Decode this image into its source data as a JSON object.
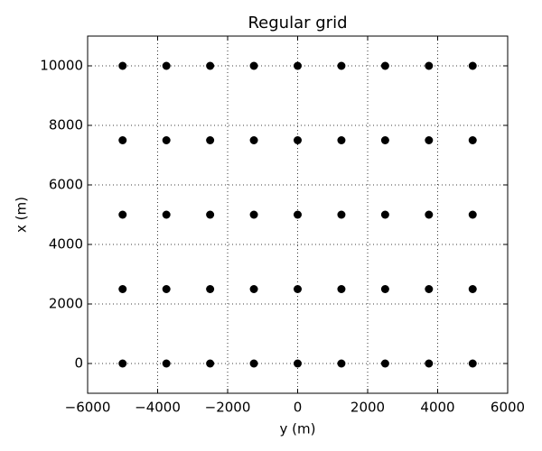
{
  "chart_data": {
    "type": "scatter",
    "title": "Regular grid",
    "x_label": "y (m)",
    "y_label": "x (m)",
    "x": [
      -5000,
      -3750,
      -2500,
      -1250,
      0,
      1250,
      2500,
      3750,
      5000,
      -5000,
      -3750,
      -2500,
      -1250,
      0,
      1250,
      2500,
      3750,
      5000,
      -5000,
      -3750,
      -2500,
      -1250,
      0,
      1250,
      2500,
      3750,
      5000,
      -5000,
      -3750,
      -2500,
      -1250,
      0,
      1250,
      2500,
      3750,
      5000,
      -5000,
      -3750,
      -2500,
      -1250,
      0,
      1250,
      2500,
      3750,
      5000
    ],
    "values": [
      0,
      0,
      0,
      0,
      0,
      0,
      0,
      0,
      0,
      2500,
      2500,
      2500,
      2500,
      2500,
      2500,
      2500,
      2500,
      2500,
      5000,
      5000,
      5000,
      5000,
      5000,
      5000,
      5000,
      5000,
      5000,
      7500,
      7500,
      7500,
      7500,
      7500,
      7500,
      7500,
      7500,
      7500,
      10000,
      10000,
      10000,
      10000,
      10000,
      10000,
      10000,
      10000,
      10000
    ],
    "color": "#000000",
    "xlim": [
      -6000,
      6000
    ],
    "xticks": [
      {
        "value": -6000,
        "label": "−6000"
      },
      {
        "value": -4000,
        "label": "−4000"
      },
      {
        "value": -2000,
        "label": "−2000"
      },
      0,
      2000,
      4000,
      6000
    ],
    "ylim": [
      -1000,
      11000
    ],
    "yticks": [
      0,
      2000,
      4000,
      6000,
      8000,
      10000
    ],
    "grid": true
  }
}
